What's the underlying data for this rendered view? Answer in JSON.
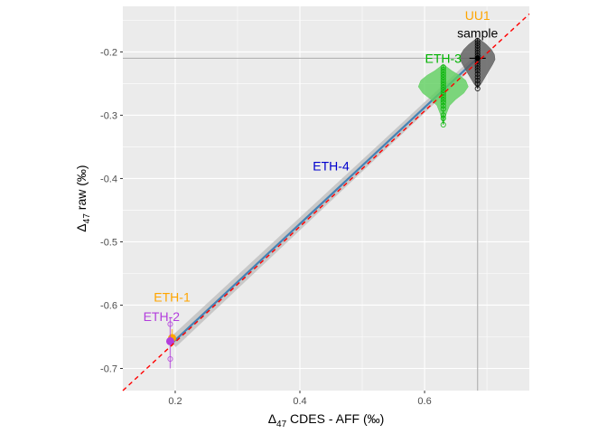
{
  "chart_data": {
    "type": "scatter",
    "xlabel": {
      "delta": "Δ",
      "sub": "47",
      "rest": " CDES - AFF (‰)"
    },
    "ylabel": {
      "delta": "Δ",
      "sub": "47",
      "rest": " raw (‰)"
    },
    "xlim": [
      0.116,
      0.768
    ],
    "ylim": [
      -0.735,
      -0.128
    ],
    "x_ticks": [
      0.2,
      0.4,
      0.6
    ],
    "x_tick_labels": [
      "0.2",
      "0.4",
      "0.6"
    ],
    "y_ticks": [
      -0.2,
      -0.3,
      -0.4,
      -0.5,
      -0.6,
      -0.7
    ],
    "y_tick_labels": [
      "-0.2",
      "-0.3",
      "-0.4",
      "-0.5",
      "-0.6",
      "-0.7"
    ],
    "grid": true,
    "identity_line": {
      "x": [
        0.116,
        0.768
      ],
      "y": [
        -0.735,
        -0.14
      ],
      "color": "#ff0000",
      "style": "dashed"
    },
    "regression": {
      "x": [
        0.195,
        0.69
      ],
      "y": [
        -0.66,
        -0.205
      ],
      "color": "#4682b4"
    },
    "sample_reference": {
      "x": 0.685,
      "y": -0.21,
      "color": "#b3b3b3"
    },
    "groups": [
      {
        "label": "UU1",
        "color": "#ffa500",
        "x": 0.69,
        "y_center": -0.21,
        "label_pos": [
          0.685,
          -0.142
        ],
        "marker": "none"
      },
      {
        "label": "sample",
        "color": "#000000",
        "fill": "#5a5a5a",
        "x": 0.685,
        "y_center": -0.21,
        "violin": [
          [
            -0.258,
            0.0
          ],
          [
            -0.25,
            0.006
          ],
          [
            -0.24,
            0.012
          ],
          [
            -0.23,
            0.018
          ],
          [
            -0.22,
            0.024
          ],
          [
            -0.212,
            0.028
          ],
          [
            -0.204,
            0.027
          ],
          [
            -0.196,
            0.022
          ],
          [
            -0.188,
            0.014
          ],
          [
            -0.182,
            0.006
          ],
          [
            -0.178,
            0.0
          ]
        ],
        "points": [
          -0.258,
          -0.25,
          -0.245,
          -0.24,
          -0.235,
          -0.23,
          -0.226,
          -0.222,
          -0.218,
          -0.214,
          -0.21,
          -0.206,
          -0.202,
          -0.198,
          -0.194,
          -0.19,
          -0.186,
          -0.182
        ],
        "label_pos": [
          0.685,
          -0.17
        ]
      },
      {
        "label": "ETH-3",
        "color": "#00b300",
        "fill": "#5fcf5f",
        "x": 0.63,
        "y_center": -0.26,
        "violin": [
          [
            -0.315,
            0.0
          ],
          [
            -0.3,
            0.004
          ],
          [
            -0.285,
            0.01
          ],
          [
            -0.275,
            0.02
          ],
          [
            -0.265,
            0.033
          ],
          [
            -0.255,
            0.04
          ],
          [
            -0.245,
            0.036
          ],
          [
            -0.237,
            0.026
          ],
          [
            -0.23,
            0.014
          ],
          [
            -0.224,
            0.006
          ],
          [
            -0.22,
            0.0
          ]
        ],
        "points": [
          -0.315,
          -0.305,
          -0.3,
          -0.29,
          -0.285,
          -0.28,
          -0.276,
          -0.272,
          -0.268,
          -0.264,
          -0.26,
          -0.256,
          -0.252,
          -0.248,
          -0.244,
          -0.24,
          -0.236,
          -0.232,
          -0.228,
          -0.224
        ],
        "label_pos": [
          0.63,
          -0.21
        ]
      },
      {
        "label": "ETH-4",
        "color": "#0000cd",
        "x": 0.45,
        "y_center": -0.38,
        "label_pos": [
          0.45,
          -0.38
        ],
        "marker": "none"
      },
      {
        "label": "ETH-1",
        "color": "#ffa500",
        "x": 0.195,
        "y_center": -0.652,
        "errorbar": [
          -0.665,
          -0.638
        ],
        "label_pos": [
          0.195,
          -0.587
        ]
      },
      {
        "label": "ETH-2",
        "color": "#b23ddc",
        "x": 0.192,
        "y_center": -0.657,
        "errorbar": [
          -0.7,
          -0.62
        ],
        "points": [
          -0.685,
          -0.63
        ],
        "label_pos": [
          0.178,
          -0.618
        ]
      }
    ]
  }
}
